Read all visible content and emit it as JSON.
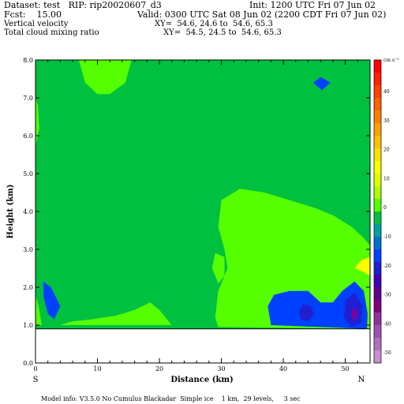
{
  "header": {
    "dataset_line": "Dataset: test   RIP: rip20020607_d3",
    "init_line": "Init: 1200 UTC Fri 07 Jun 02",
    "fcst_line": "Fcst:    15.00",
    "valid_line": "Valid: 0300 UTC Sat 08 Jun 02 (2200 CDT Fri 07 Jun 02)",
    "field1_name": "Vertical velocity",
    "field1_xy": "XY=  54.6, 24.6 to  54.6, 65.3",
    "field2_name": "Total cloud mixing ratio",
    "field2_xy": "XY=  54.5, 24.5 to  54.6, 65.3"
  },
  "footer": {
    "model_info": "Model info: V3.5.0 No Cumulus Blackadar  Simple ice    1 km,  29 levels,     3 sec"
  },
  "chart_data": {
    "type": "heatmap",
    "xlabel": "Distance (km)",
    "ylabel": "Height (km)",
    "xlim": [
      0,
      54
    ],
    "ylim": [
      0,
      8
    ],
    "x_ticks": [
      0,
      10,
      20,
      30,
      40,
      50
    ],
    "y_ticks": [
      "0.0",
      "1.0",
      "2.0",
      "3.0",
      "4.0",
      "5.0",
      "6.0",
      "7.0",
      "8.0"
    ],
    "x_end_labels": {
      "left": "S",
      "right": "N"
    },
    "terrain_height_km": 0.9,
    "colorbar": {
      "unit": "cm s⁻¹",
      "labels": [
        "40",
        "30",
        "20",
        "10",
        "0",
        "-10",
        "-20",
        "-30",
        "-40",
        "-50"
      ],
      "colors": [
        "#ff0000",
        "#ff2000",
        "#ff4000",
        "#ff6000",
        "#ff8000",
        "#ffa000",
        "#ffc000",
        "#ffe000",
        "#ffff00",
        "#ddff00",
        "#aaff00",
        "#55ff00",
        "#00c040",
        "#00a0a0",
        "#0070d0",
        "#0040ff",
        "#2020d0",
        "#4000b0",
        "#600090",
        "#800080",
        "#9030a0",
        "#a050b0",
        "#b070c0",
        "#c890d0"
      ]
    },
    "regions": [
      {
        "value_class": "light-green",
        "color": "#55ff00",
        "points": [
          [
            7,
            8
          ],
          [
            8,
            7.4
          ],
          [
            10,
            7.1
          ],
          [
            12,
            7.1
          ],
          [
            14.5,
            7.4
          ],
          [
            15.5,
            8
          ]
        ]
      },
      {
        "value_class": "light-green",
        "color": "#55ff00",
        "points": [
          [
            0,
            5.7
          ],
          [
            0.6,
            6.2
          ],
          [
            0.4,
            6.8
          ],
          [
            0,
            7
          ]
        ]
      },
      {
        "value_class": "light-green",
        "color": "#55ff00",
        "points": [
          [
            0,
            1.8
          ],
          [
            0.5,
            1.5
          ],
          [
            1,
            1
          ],
          [
            0,
            1
          ]
        ]
      },
      {
        "value_class": "light-green",
        "color": "#55ff00",
        "points": [
          [
            4,
            1
          ],
          [
            6,
            1.1
          ],
          [
            9,
            1.15
          ],
          [
            13,
            1.25
          ],
          [
            16,
            1.4
          ],
          [
            18.5,
            1.6
          ],
          [
            20,
            1.4
          ],
          [
            21,
            1.2
          ],
          [
            22,
            1
          ]
        ]
      },
      {
        "value_class": "light-green",
        "color": "#55ff00",
        "points": [
          [
            29,
            1.2
          ],
          [
            29.5,
            1.9
          ],
          [
            31,
            2.5
          ],
          [
            30.5,
            3.0
          ],
          [
            29.5,
            3.6
          ],
          [
            30,
            4.3
          ],
          [
            33,
            4.6
          ],
          [
            37,
            4.5
          ],
          [
            41,
            4.3
          ],
          [
            45,
            4.1
          ],
          [
            48,
            3.9
          ],
          [
            51,
            3.6
          ],
          [
            53,
            3.3
          ],
          [
            54,
            3.1
          ],
          [
            54,
            0.9
          ],
          [
            29.5,
            0.95
          ]
        ]
      },
      {
        "value_class": "light-green",
        "color": "#55ff00",
        "points": [
          [
            29,
            2.9
          ],
          [
            30.5,
            2.8
          ],
          [
            30.5,
            2.3
          ],
          [
            29.5,
            2.1
          ],
          [
            28.5,
            2.5
          ]
        ]
      },
      {
        "value_class": "yellow",
        "color": "#ffff00",
        "points": [
          [
            51.5,
            2.5
          ],
          [
            52.5,
            2.7
          ],
          [
            54,
            2.8
          ],
          [
            54,
            2.3
          ],
          [
            53,
            2.4
          ]
        ]
      },
      {
        "value_class": "blue",
        "color": "#0040ff",
        "points": [
          [
            38,
            1.0
          ],
          [
            37.5,
            1.5
          ],
          [
            38.5,
            1.8
          ],
          [
            41,
            1.9
          ],
          [
            44,
            1.9
          ],
          [
            46,
            1.6
          ],
          [
            48,
            1.6
          ],
          [
            49.5,
            1.9
          ],
          [
            51.5,
            2.15
          ],
          [
            53,
            1.9
          ],
          [
            53.6,
            1.3
          ],
          [
            53.5,
            0.9
          ]
        ]
      },
      {
        "value_class": "blue",
        "color": "#0040ff",
        "points": [
          [
            1.2,
            2.15
          ],
          [
            2.5,
            2.0
          ],
          [
            4,
            1.5
          ],
          [
            3,
            1.15
          ],
          [
            2,
            1.3
          ],
          [
            1.3,
            1.75
          ]
        ]
      },
      {
        "value_class": "blue",
        "color": "#0040ff",
        "points": [
          [
            44.8,
            7.4
          ],
          [
            46,
            7.55
          ],
          [
            47.6,
            7.4
          ],
          [
            46.2,
            7.2
          ]
        ]
      },
      {
        "value_class": "darker-blue",
        "color": "#2020d0",
        "points": [
          [
            42.5,
            1.35
          ],
          [
            43.2,
            1.55
          ],
          [
            44.4,
            1.5
          ],
          [
            45,
            1.3
          ],
          [
            44,
            1.1
          ],
          [
            42.9,
            1.15
          ]
        ]
      },
      {
        "value_class": "darker-blue",
        "color": "#2020d0",
        "points": [
          [
            49.8,
            1.2
          ],
          [
            50,
            1.65
          ],
          [
            51.5,
            1.85
          ],
          [
            52.8,
            1.5
          ],
          [
            52.5,
            1.05
          ],
          [
            51,
            0.95
          ]
        ]
      },
      {
        "value_class": "purple",
        "color": "#8000a0",
        "points": [
          [
            51,
            1.3
          ],
          [
            51.3,
            1.45
          ],
          [
            52,
            1.4
          ],
          [
            51.8,
            1.15
          ],
          [
            51.2,
            1.15
          ]
        ]
      }
    ]
  }
}
